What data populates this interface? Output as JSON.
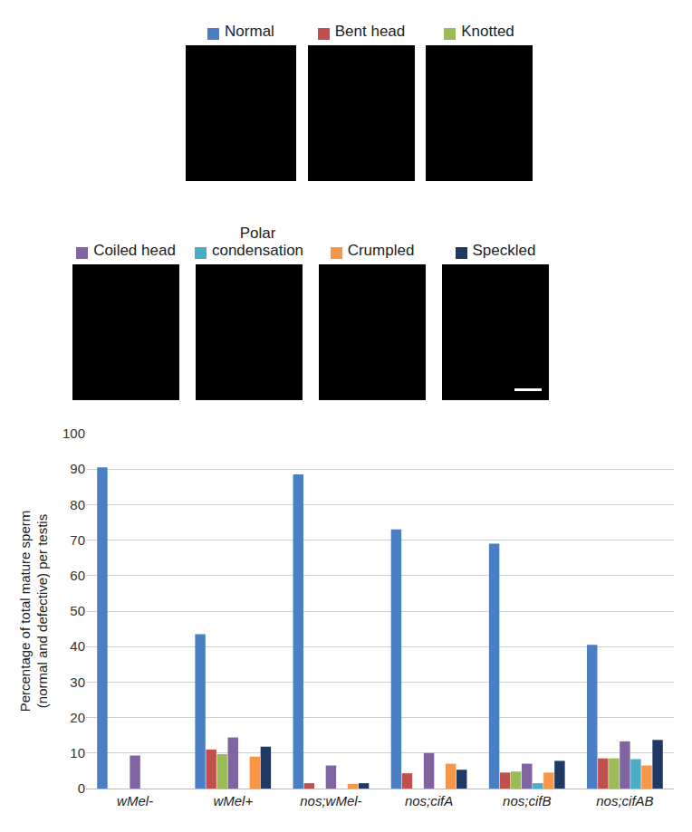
{
  "chart_data": {
    "type": "bar",
    "categories": [
      "wMel-",
      "wMel+",
      "nos;wMel-",
      "nos;cifA",
      "nos;cifB",
      "nos;cifAB"
    ],
    "series": [
      {
        "name": "Normal",
        "color": "#4a7fc1",
        "values": [
          90.5,
          43.5,
          88.5,
          73,
          69,
          40.5
        ]
      },
      {
        "name": "Bent head",
        "color": "#c0504d",
        "values": [
          0,
          11,
          1.5,
          4.3,
          4.5,
          8.5
        ]
      },
      {
        "name": "Knotted",
        "color": "#9bbb59",
        "values": [
          0,
          9.7,
          0,
          0,
          4.8,
          8.5
        ]
      },
      {
        "name": "Coiled head",
        "color": "#8064a2",
        "values": [
          9.3,
          14.4,
          6.5,
          10,
          7,
          13.3
        ]
      },
      {
        "name": "Polar condensation",
        "color": "#4bacc6",
        "values": [
          0,
          0,
          0,
          0,
          1.5,
          8.3
        ]
      },
      {
        "name": "Crumpled",
        "color": "#f79646",
        "values": [
          0,
          9,
          1.3,
          7,
          4.5,
          6.5
        ]
      },
      {
        "name": "Speckled",
        "color": "#1f3864",
        "values": [
          0,
          11.8,
          1.5,
          5.3,
          7.8,
          13.7
        ]
      }
    ],
    "y_label": "Percentage of total mature sperm (normal and defective) per testis",
    "ylim": [
      0,
      100
    ],
    "yticks": [
      0,
      10,
      20,
      30,
      40,
      50,
      60,
      70,
      80,
      90,
      100
    ],
    "grid": true,
    "legend": "top"
  }
}
